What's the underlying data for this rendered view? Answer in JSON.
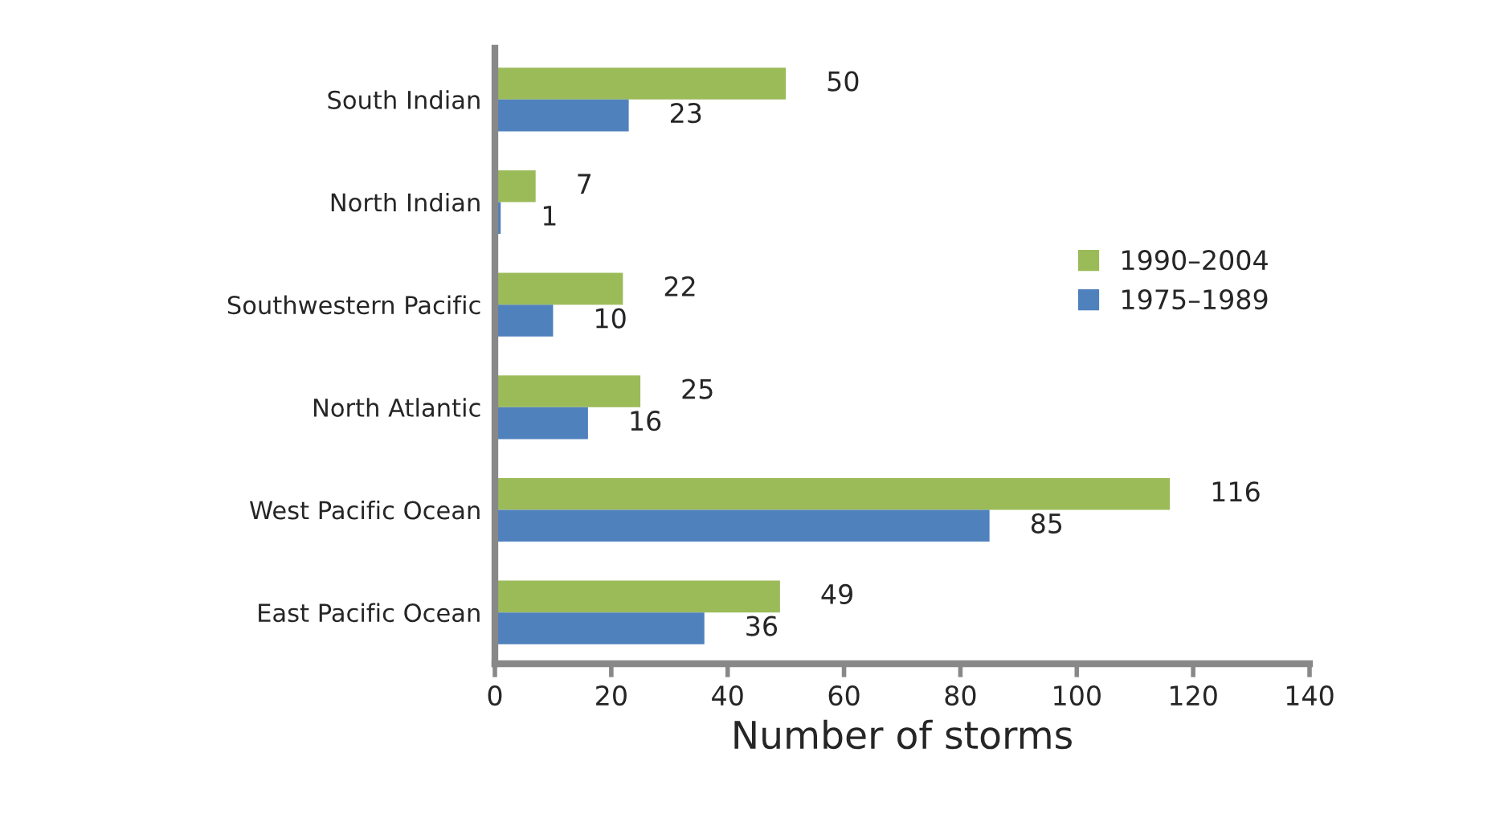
{
  "chart_data": {
    "type": "bar",
    "orientation": "horizontal",
    "xlabel": "Number of storms",
    "categories": [
      "South Indian",
      "North Indian",
      "Southwestern Pacific",
      "North Atlantic",
      "West Pacific Ocean",
      "East Pacific Ocean"
    ],
    "series": [
      {
        "name": "1990–2004",
        "color": "#9bbb59",
        "values": [
          50,
          7,
          22,
          25,
          116,
          49
        ]
      },
      {
        "name": "1975–1989",
        "color": "#4f81bd",
        "values": [
          23,
          1,
          10,
          16,
          85,
          36
        ]
      }
    ],
    "xlim": [
      0,
      140
    ],
    "xticks": [
      0,
      20,
      40,
      60,
      80,
      100,
      120,
      140
    ],
    "data_labels": true,
    "legend": "right",
    "grid": false
  }
}
